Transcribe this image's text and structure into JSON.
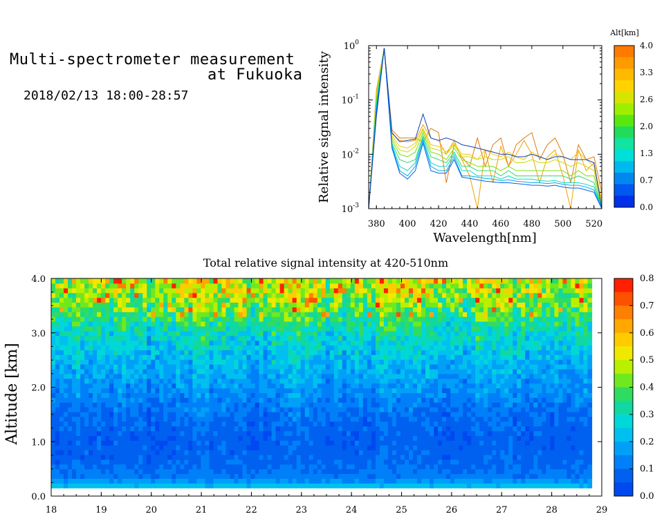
{
  "header": {
    "title_line1": "Multi-spectrometer measurement",
    "title_line2": "at Fukuoka",
    "datetime": "2018/02/13 18:00-28:57"
  },
  "chart_data": [
    {
      "type": "line",
      "xlabel": "Wavelength[nm]",
      "ylabel": "Relative signal intensity",
      "xlim": [
        375,
        525
      ],
      "ylim": [
        0.001,
        1
      ],
      "yscale": "log",
      "x_ticks": [
        "380",
        "400",
        "420",
        "440",
        "460",
        "480",
        "500",
        "520"
      ],
      "y_ticks": [
        "10^0",
        "10^-1",
        "10^-2",
        "10^-3"
      ],
      "colorbar": {
        "label": "Alt[km]",
        "ticks": [
          "4.0",
          "3.3",
          "2.6",
          "2.0",
          "1.3",
          "0.7",
          "0.0"
        ],
        "colors": [
          "#ff7a00",
          "#ff9a00",
          "#ffba00",
          "#ffd200",
          "#d6e400",
          "#9eee00",
          "#58e810",
          "#20dc58",
          "#10e4a0",
          "#00e0d8",
          "#00b8f0",
          "#0088f0",
          "#0058f0",
          "#0030e8"
        ]
      },
      "x": [
        375,
        380,
        385,
        390,
        395,
        400,
        405,
        410,
        415,
        420,
        425,
        430,
        435,
        440,
        445,
        450,
        455,
        460,
        465,
        470,
        475,
        480,
        485,
        490,
        495,
        500,
        505,
        510,
        515,
        520,
        525
      ],
      "series": [
        {
          "color": "#e07a10",
          "values": [
            0.001,
            0.15,
            0.9,
            0.028,
            0.02,
            0.02,
            0.02,
            0.017,
            0.03,
            0.025,
            0.003,
            0.015,
            0.009,
            0.006,
            0.02,
            0.006,
            0.015,
            0.02,
            0.006,
            0.015,
            0.02,
            0.025,
            0.008,
            0.015,
            0.02,
            0.01,
            0.003,
            0.015,
            0.008,
            0.009,
            0.002
          ]
        },
        {
          "color": "#f0a000",
          "values": [
            0.001,
            0.14,
            0.9,
            0.024,
            0.018,
            0.017,
            0.018,
            0.035,
            0.02,
            0.018,
            0.01,
            0.018,
            0.008,
            0.004,
            0.001,
            0.012,
            0.003,
            0.014,
            0.006,
            0.01,
            0.018,
            0.01,
            0.003,
            0.009,
            0.012,
            0.004,
            0.001,
            0.012,
            0.005,
            0.007,
            0.0012
          ]
        },
        {
          "color": "#f2c800",
          "values": [
            0.001,
            0.13,
            0.9,
            0.022,
            0.014,
            0.013,
            0.016,
            0.03,
            0.015,
            0.014,
            0.011,
            0.016,
            0.01,
            0.01,
            0.008,
            0.012,
            0.01,
            0.009,
            0.011,
            0.009,
            0.008,
            0.011,
            0.009,
            0.008,
            0.01,
            0.009,
            0.008,
            0.011,
            0.008,
            0.006,
            0.0015
          ]
        },
        {
          "color": "#c8dc00",
          "values": [
            0.001,
            0.12,
            0.9,
            0.02,
            0.012,
            0.011,
            0.014,
            0.028,
            0.013,
            0.012,
            0.01,
            0.015,
            0.009,
            0.009,
            0.008,
            0.009,
            0.008,
            0.008,
            0.009,
            0.007,
            0.007,
            0.008,
            0.007,
            0.007,
            0.008,
            0.007,
            0.006,
            0.007,
            0.006,
            0.005,
            0.0012
          ]
        },
        {
          "color": "#78e010",
          "values": [
            0.001,
            0.1,
            0.9,
            0.018,
            0.01,
            0.009,
            0.011,
            0.025,
            0.011,
            0.01,
            0.008,
            0.013,
            0.008,
            0.007,
            0.006,
            0.006,
            0.006,
            0.005,
            0.006,
            0.005,
            0.005,
            0.005,
            0.005,
            0.005,
            0.005,
            0.005,
            0.004,
            0.005,
            0.004,
            0.004,
            0.001
          ]
        },
        {
          "color": "#30d870",
          "values": [
            0.001,
            0.09,
            0.9,
            0.016,
            0.008,
            0.007,
            0.008,
            0.022,
            0.009,
            0.008,
            0.007,
            0.011,
            0.006,
            0.006,
            0.005,
            0.005,
            0.005,
            0.004,
            0.005,
            0.004,
            0.004,
            0.004,
            0.004,
            0.004,
            0.004,
            0.004,
            0.0035,
            0.004,
            0.0035,
            0.003,
            0.001
          ]
        },
        {
          "color": "#10d8c0",
          "values": [
            0.001,
            0.08,
            0.9,
            0.015,
            0.006,
            0.005,
            0.007,
            0.02,
            0.007,
            0.006,
            0.006,
            0.01,
            0.005,
            0.005,
            0.004,
            0.004,
            0.004,
            0.0035,
            0.004,
            0.0035,
            0.0035,
            0.0035,
            0.0033,
            0.0032,
            0.0033,
            0.003,
            0.003,
            0.003,
            0.0028,
            0.0025,
            0.001
          ]
        },
        {
          "color": "#00a8ee",
          "values": [
            0.001,
            0.07,
            0.9,
            0.014,
            0.005,
            0.004,
            0.006,
            0.018,
            0.006,
            0.005,
            0.005,
            0.009,
            0.004,
            0.004,
            0.0038,
            0.0036,
            0.0035,
            0.0033,
            0.0034,
            0.0032,
            0.0031,
            0.003,
            0.003,
            0.0029,
            0.003,
            0.0028,
            0.0027,
            0.0027,
            0.0025,
            0.0022,
            0.001
          ]
        },
        {
          "color": "#0060e8",
          "values": [
            0.001,
            0.06,
            0.9,
            0.013,
            0.0045,
            0.0035,
            0.005,
            0.016,
            0.005,
            0.0045,
            0.0045,
            0.008,
            0.0038,
            0.0036,
            0.0034,
            0.0032,
            0.0031,
            0.003,
            0.003,
            0.0029,
            0.0028,
            0.0027,
            0.0027,
            0.0026,
            0.0027,
            0.0025,
            0.0024,
            0.0024,
            0.0022,
            0.002,
            0.001
          ]
        },
        {
          "color": "#1040b0",
          "values": [
            0.001,
            0.05,
            0.9,
            0.025,
            0.017,
            0.018,
            0.019,
            0.055,
            0.02,
            0.018,
            0.02,
            0.018,
            0.015,
            0.014,
            0.013,
            0.012,
            0.011,
            0.01,
            0.01,
            0.009,
            0.009,
            0.01,
            0.009,
            0.008,
            0.009,
            0.009,
            0.008,
            0.008,
            0.008,
            0.007,
            0.001
          ]
        }
      ]
    },
    {
      "type": "heatmap",
      "title": "Total relative signal intensity at 420-510nm",
      "ylabel": "Altitude [km]",
      "xlim": [
        18,
        29
      ],
      "ylim": [
        0,
        4
      ],
      "x_ticks": [
        "18",
        "19",
        "20",
        "21",
        "22",
        "23",
        "24",
        "25",
        "26",
        "27",
        "28",
        "29"
      ],
      "y_ticks": [
        "0.0",
        "1.0",
        "2.0",
        "3.0",
        "4.0"
      ],
      "colorbar": {
        "ticks": [
          "0.8",
          "0.7",
          "0.6",
          "0.5",
          "0.4",
          "0.3",
          "0.2",
          "0.1",
          "0.0"
        ],
        "colors": [
          "#ff2000",
          "#ff5000",
          "#ff8000",
          "#ffa800",
          "#ffcc00",
          "#f0e800",
          "#b8f000",
          "#70e820",
          "#30dc60",
          "#10d8a0",
          "#00d8d8",
          "#00c0f0",
          "#00a0f8",
          "#0080f8",
          "#0060f0",
          "#0048f0"
        ]
      },
      "description_levels": {
        "data_time_range": [
          18.0,
          28.8
        ],
        "data_alt_range": [
          0.15,
          4.0
        ],
        "profile": [
          [
            0.15,
            0.22
          ],
          [
            0.3,
            0.12
          ],
          [
            0.6,
            0.08
          ],
          [
            1.0,
            0.07
          ],
          [
            1.5,
            0.1
          ],
          [
            2.0,
            0.16
          ],
          [
            2.5,
            0.22
          ],
          [
            3.0,
            0.3
          ],
          [
            3.5,
            0.42
          ],
          [
            4.0,
            0.5
          ]
        ]
      }
    }
  ]
}
